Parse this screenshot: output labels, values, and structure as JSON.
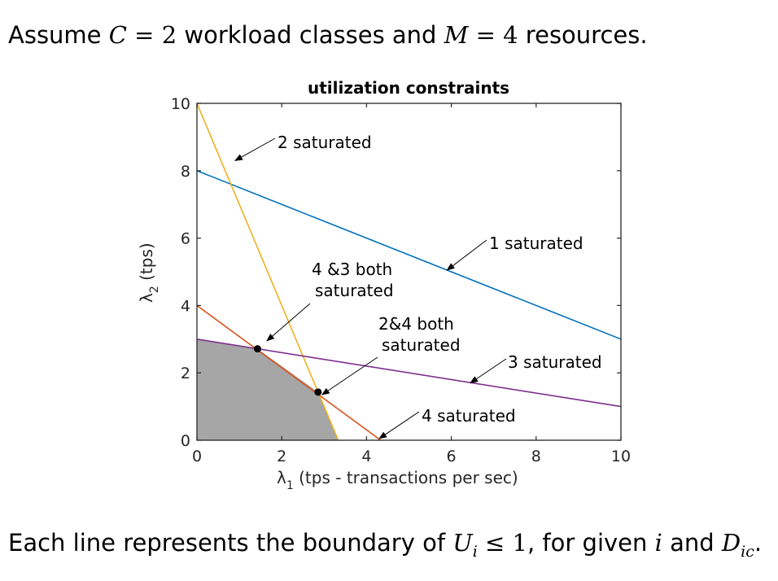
{
  "header": {
    "prefix": "Assume ",
    "c_sym": "C",
    "eq1": " = ",
    "c_val": "2",
    "mid": " workload classes and ",
    "m_sym": "M",
    "eq2": " = ",
    "m_val": "4",
    "suffix": " resources."
  },
  "footer": {
    "prefix": "Each line represents the boundary of ",
    "ineq": "U",
    "ineq_sub": "i",
    "le": " ≤ ",
    "one": "1",
    "mid": ", for given ",
    "i_sym": "i",
    "and": " and ",
    "d_sym": "D",
    "d_sub": "ic",
    "end": "."
  },
  "colors": {
    "line1": "#0072BD",
    "line2": "#EDB120",
    "line3": "#7E2F8E",
    "line4": "#D95319",
    "feasible": "#a6a6a6"
  },
  "chart_data": {
    "type": "line",
    "title": "utilization constraints",
    "xlabel_main": "λ",
    "xlabel_sub": "1",
    "xlabel_rest": " (tps - transactions per sec)",
    "ylabel_main": "λ",
    "ylabel_sub": "2",
    "ylabel_rest": " (tps)",
    "xlim": [
      0,
      10
    ],
    "ylim": [
      0,
      10
    ],
    "xticks": [
      0,
      2,
      4,
      6,
      8,
      10
    ],
    "yticks": [
      0,
      2,
      4,
      6,
      8,
      10
    ],
    "series": [
      {
        "id": "line1",
        "x": [
          0,
          10
        ],
        "y": [
          8,
          3
        ]
      },
      {
        "id": "line2",
        "x": [
          0,
          3.333
        ],
        "y": [
          10,
          0
        ]
      },
      {
        "id": "line3",
        "x": [
          0,
          10
        ],
        "y": [
          3,
          1
        ]
      },
      {
        "id": "line4",
        "x": [
          0,
          4.333
        ],
        "y": [
          4,
          0
        ]
      }
    ],
    "feasible_region": {
      "x": [
        0,
        0,
        1.429,
        2.857,
        3.333
      ],
      "y": [
        0,
        3,
        2.714,
        1.429,
        0
      ]
    },
    "points": [
      {
        "x": 1.429,
        "y": 2.714
      },
      {
        "x": 2.857,
        "y": 1.429
      }
    ],
    "annotations": [
      {
        "id": "ann-2-saturated",
        "lines": [
          "2 saturated"
        ],
        "arrow_to": [
          0.9,
          8.3
        ]
      },
      {
        "id": "ann-1-saturated",
        "lines": [
          "1 saturated"
        ],
        "arrow_to": [
          5.9,
          5.05
        ]
      },
      {
        "id": "ann-4-3-both",
        "lines": [
          "4 &3 both",
          "saturated"
        ],
        "arrow_to": [
          1.65,
          2.95
        ]
      },
      {
        "id": "ann-2-4-both",
        "lines": [
          "2&4 both",
          "saturated"
        ],
        "arrow_to": [
          2.95,
          1.35
        ]
      },
      {
        "id": "ann-3-saturated",
        "lines": [
          "3 saturated"
        ],
        "arrow_to": [
          6.45,
          1.7
        ]
      },
      {
        "id": "ann-4-saturated",
        "lines": [
          "4 saturated"
        ],
        "arrow_to": [
          4.3,
          0.05
        ]
      }
    ]
  }
}
